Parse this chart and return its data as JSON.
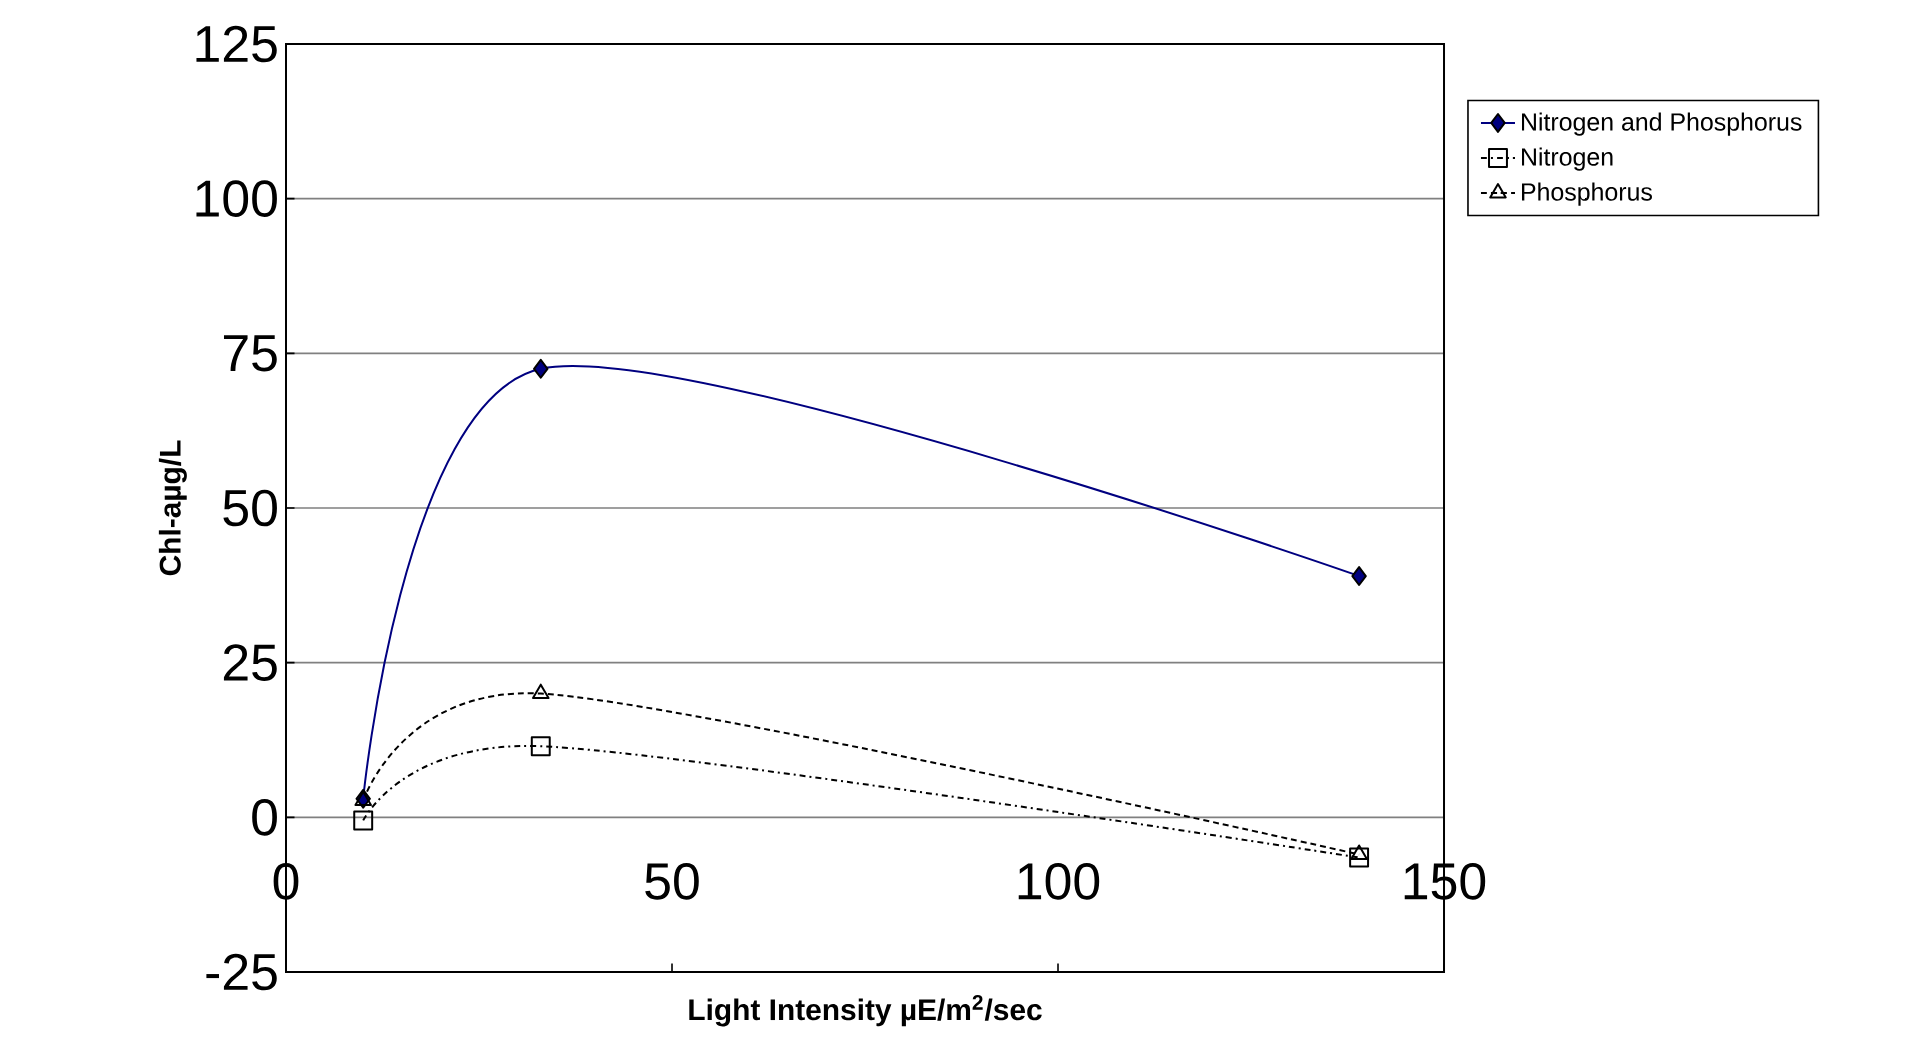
{
  "chart_data": {
    "type": "line",
    "xlabel": "Light Intensity µE/m$^{2}$/sec",
    "ylabel": "Chl-aµg/L",
    "x": [
      10,
      33,
      139
    ],
    "series": [
      {
        "name": "Nitrogen and Phosphorus",
        "color": "#000080",
        "values": [
          3,
          72.5,
          39
        ],
        "marker": "diamond",
        "line_style": "solid"
      },
      {
        "name": "Nitrogen",
        "color": "#000000",
        "values": [
          -0.5,
          11.5,
          -6.5
        ],
        "marker": "square",
        "line_style": "dashed"
      },
      {
        "name": "Phosphorus",
        "color": "#000000",
        "values": [
          2.7,
          20,
          -6
        ],
        "marker": "triangle",
        "line_style": "dotted"
      }
    ],
    "xlim": [
      0,
      150
    ],
    "xticks": [
      0,
      50,
      100,
      150
    ],
    "ylim": [
      -25,
      125
    ],
    "yticks": [
      -25,
      0,
      25,
      50,
      75,
      100,
      125
    ],
    "grid": "y",
    "legend": "top right"
  }
}
